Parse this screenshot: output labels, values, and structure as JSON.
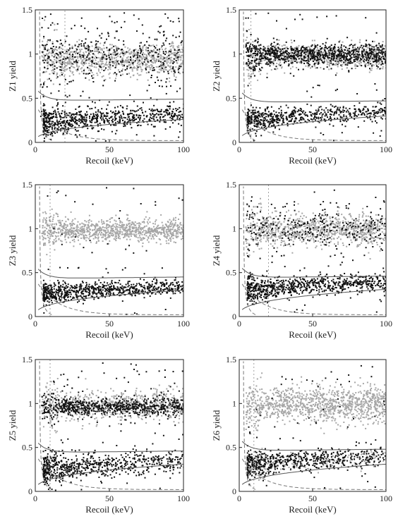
{
  "figure": {
    "background": "#ffffff",
    "axis_color": "#222222"
  },
  "chart_data": [
    {
      "type": "scatter",
      "panel": "Z1",
      "xlabel": "Recoil (keV)",
      "ylabel": "Z1 yield",
      "xlim": [
        0,
        100
      ],
      "ylim": [
        0,
        1.5
      ],
      "xticks": [
        0,
        50,
        100
      ],
      "yticks": [
        0,
        0.5,
        1,
        1.5
      ],
      "series": [
        {
          "color": "#a6a6a6",
          "kind": "electron-recoil band",
          "center": 0.95,
          "spread": 0.09,
          "count": 900
        },
        {
          "color": "#111111",
          "kind": "electron-recoil band",
          "center": 0.98,
          "spread": 0.13,
          "count": 320
        },
        {
          "color": "#111111",
          "kind": "nuclear-recoil band",
          "center": 0.27,
          "spread": 0.06,
          "count": 700
        },
        {
          "color": "#111111",
          "kind": "scattered events",
          "count": 160
        }
      ],
      "band_curves": {
        "upper_at_100": 0.49,
        "lower_at_100": 0.26
      },
      "threshold_x": 20
    },
    {
      "type": "scatter",
      "panel": "Z2",
      "xlabel": "Recoil (keV)",
      "ylabel": "Z2 yield",
      "xlim": [
        0,
        100
      ],
      "ylim": [
        0,
        1.5
      ],
      "xticks": [
        0,
        50,
        100
      ],
      "yticks": [
        0,
        0.5,
        1,
        1.5
      ],
      "series": [
        {
          "color": "#a6a6a6",
          "kind": "electron-recoil band",
          "center": 0.98,
          "spread": 0.07,
          "count": 600
        },
        {
          "color": "#111111",
          "kind": "electron-recoil band",
          "center": 1.0,
          "spread": 0.06,
          "count": 900
        },
        {
          "color": "#111111",
          "kind": "nuclear-recoil band",
          "center": 0.3,
          "spread": 0.05,
          "count": 600
        },
        {
          "color": "#111111",
          "kind": "scattered events",
          "count": 80
        }
      ],
      "band_curves": {
        "upper_at_100": 0.47,
        "lower_at_100": 0.3
      },
      "threshold_x": 8
    },
    {
      "type": "scatter",
      "panel": "Z3",
      "xlabel": "Recoil (keV)",
      "ylabel": "Z3 yield",
      "xlim": [
        0,
        100
      ],
      "ylim": [
        0,
        1.5
      ],
      "xticks": [
        0,
        50,
        100
      ],
      "yticks": [
        0,
        0.5,
        1,
        1.5
      ],
      "series": [
        {
          "color": "#a6a6a6",
          "kind": "electron-recoil band",
          "center": 0.99,
          "spread": 0.06,
          "count": 1000
        },
        {
          "color": "#111111",
          "kind": "nuclear-recoil band",
          "center": 0.3,
          "spread": 0.045,
          "count": 750
        },
        {
          "color": "#111111",
          "kind": "scattered events",
          "count": 60
        }
      ],
      "band_curves": {
        "upper_at_100": 0.45,
        "lower_at_100": 0.3
      },
      "threshold_x": 10
    },
    {
      "type": "scatter",
      "panel": "Z4",
      "xlabel": "Recoil (keV)",
      "ylabel": "Z4 yield",
      "xlim": [
        0,
        100
      ],
      "ylim": [
        0,
        1.5
      ],
      "xticks": [
        0,
        50,
        100
      ],
      "yticks": [
        0,
        0.5,
        1,
        1.5
      ],
      "series": [
        {
          "color": "#a6a6a6",
          "kind": "electron-recoil band",
          "center": 1.0,
          "spread": 0.09,
          "count": 1000
        },
        {
          "color": "#111111",
          "kind": "electron-recoil band",
          "center": 1.02,
          "spread": 0.1,
          "count": 250
        },
        {
          "color": "#111111",
          "kind": "nuclear-recoil band",
          "center": 0.35,
          "spread": 0.055,
          "count": 750
        },
        {
          "color": "#111111",
          "kind": "scattered events",
          "count": 90
        }
      ],
      "band_curves": {
        "upper_at_100": 0.46,
        "lower_at_100": 0.31
      },
      "threshold_x": 20
    },
    {
      "type": "scatter",
      "panel": "Z5",
      "xlabel": "Recoil (keV)",
      "ylabel": "Z5 yield",
      "xlim": [
        0,
        100
      ],
      "ylim": [
        0,
        1.5
      ],
      "xticks": [
        0,
        50,
        100
      ],
      "yticks": [
        0,
        0.5,
        1,
        1.5
      ],
      "series": [
        {
          "color": "#a6a6a6",
          "kind": "electron-recoil band",
          "center": 0.98,
          "spread": 0.08,
          "count": 700
        },
        {
          "color": "#111111",
          "kind": "electron-recoil band",
          "center": 0.97,
          "spread": 0.05,
          "count": 700
        },
        {
          "color": "#111111",
          "kind": "nuclear-recoil band",
          "center": 0.29,
          "spread": 0.06,
          "count": 650
        },
        {
          "color": "#111111",
          "kind": "scattered events",
          "count": 120
        }
      ],
      "band_curves": {
        "upper_at_100": 0.46,
        "lower_at_100": 0.31
      },
      "threshold_x": 10
    },
    {
      "type": "scatter",
      "panel": "Z6",
      "xlabel": "Recoil (keV)",
      "ylabel": "Z6 yield",
      "xlim": [
        0,
        100
      ],
      "ylim": [
        0,
        1.5
      ],
      "xticks": [
        0,
        50,
        100
      ],
      "yticks": [
        0,
        0.5,
        1,
        1.5
      ],
      "series": [
        {
          "color": "#a6a6a6",
          "kind": "electron-recoil band",
          "center": 1.0,
          "spread": 0.1,
          "count": 1100
        },
        {
          "color": "#111111",
          "kind": "nuclear-recoil band",
          "center": 0.35,
          "spread": 0.06,
          "count": 600
        },
        {
          "color": "#a6a6a6",
          "kind": "nuclear-recoil band",
          "center": 0.33,
          "spread": 0.05,
          "count": 200
        },
        {
          "color": "#111111",
          "kind": "scattered events",
          "count": 50
        }
      ],
      "band_curves": {
        "upper_at_100": 0.48,
        "lower_at_100": 0.31
      },
      "threshold_x": 10
    }
  ]
}
